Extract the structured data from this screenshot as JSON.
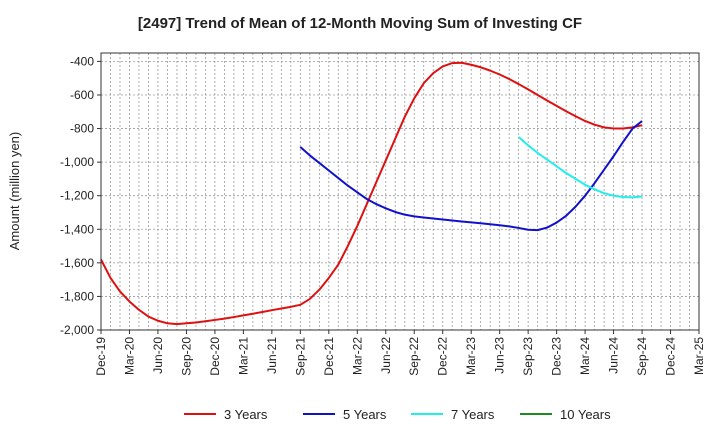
{
  "chart_data": {
    "type": "line",
    "title": "[2497]  Trend of Mean of 12-Month Moving Sum of Investing CF",
    "xlabel": "",
    "ylabel": "Amount (million yen)",
    "ylim": [
      -2000,
      -350
    ],
    "yticks": [
      -400,
      -600,
      -800,
      -1000,
      -1200,
      -1400,
      -1600,
      -1800,
      -2000
    ],
    "ytick_labels": [
      "-400",
      "-600",
      "-800",
      "-1,000",
      "-1,200",
      "-1,400",
      "-1,600",
      "-1,800",
      "-2,000"
    ],
    "xticks": [
      "Dec-19",
      "Mar-20",
      "Jun-20",
      "Sep-20",
      "Dec-20",
      "Mar-21",
      "Jun-21",
      "Sep-21",
      "Dec-21",
      "Mar-22",
      "Jun-22",
      "Sep-22",
      "Dec-22",
      "Mar-23",
      "Jun-23",
      "Sep-23",
      "Dec-23",
      "Mar-24",
      "Jun-24",
      "Sep-24",
      "Dec-24",
      "Mar-25"
    ],
    "grid": true,
    "legend_position": "bottom",
    "series": [
      {
        "name": "3 Years",
        "color": "#dd1111",
        "points": [
          [
            "Dec-19",
            -1580
          ],
          [
            "Jan-20",
            -1690
          ],
          [
            "Feb-20",
            -1770
          ],
          [
            "Mar-20",
            -1830
          ],
          [
            "Apr-20",
            -1880
          ],
          [
            "May-20",
            -1920
          ],
          [
            "Jun-20",
            -1945
          ],
          [
            "Jul-20",
            -1960
          ],
          [
            "Aug-20",
            -1965
          ],
          [
            "Sep-20",
            -1960
          ],
          [
            "Oct-20",
            -1955
          ],
          [
            "Nov-20",
            -1948
          ],
          [
            "Dec-20",
            -1940
          ],
          [
            "Jan-21",
            -1932
          ],
          [
            "Feb-21",
            -1923
          ],
          [
            "Mar-21",
            -1913
          ],
          [
            "Apr-21",
            -1903
          ],
          [
            "May-21",
            -1893
          ],
          [
            "Jun-21",
            -1882
          ],
          [
            "Jul-21",
            -1872
          ],
          [
            "Aug-21",
            -1862
          ],
          [
            "Sep-21",
            -1850
          ],
          [
            "Oct-21",
            -1815
          ],
          [
            "Nov-21",
            -1760
          ],
          [
            "Dec-21",
            -1690
          ],
          [
            "Jan-22",
            -1610
          ],
          [
            "Feb-22",
            -1500
          ],
          [
            "Mar-22",
            -1380
          ],
          [
            "Apr-22",
            -1250
          ],
          [
            "May-22",
            -1120
          ],
          [
            "Jun-22",
            -990
          ],
          [
            "Jul-22",
            -860
          ],
          [
            "Aug-22",
            -730
          ],
          [
            "Sep-22",
            -620
          ],
          [
            "Oct-22",
            -530
          ],
          [
            "Nov-22",
            -470
          ],
          [
            "Dec-22",
            -430
          ],
          [
            "Jan-23",
            -410
          ],
          [
            "Feb-23",
            -408
          ],
          [
            "Mar-23",
            -420
          ],
          [
            "Apr-23",
            -435
          ],
          [
            "May-23",
            -455
          ],
          [
            "Jun-23",
            -478
          ],
          [
            "Jul-23",
            -505
          ],
          [
            "Aug-23",
            -535
          ],
          [
            "Sep-23",
            -567
          ],
          [
            "Oct-23",
            -600
          ],
          [
            "Nov-23",
            -633
          ],
          [
            "Dec-23",
            -665
          ],
          [
            "Jan-24",
            -697
          ],
          [
            "Feb-24",
            -727
          ],
          [
            "Mar-24",
            -755
          ],
          [
            "Apr-24",
            -777
          ],
          [
            "May-24",
            -793
          ],
          [
            "Jun-24",
            -800
          ],
          [
            "Jul-24",
            -800
          ],
          [
            "Aug-24",
            -793
          ],
          [
            "Sep-24",
            -780
          ]
        ]
      },
      {
        "name": "5 Years",
        "color": "#1111cc",
        "points": [
          [
            "Sep-21",
            -910
          ],
          [
            "Oct-21",
            -960
          ],
          [
            "Nov-21",
            -1005
          ],
          [
            "Dec-21",
            -1050
          ],
          [
            "Jan-22",
            -1095
          ],
          [
            "Feb-22",
            -1140
          ],
          [
            "Mar-22",
            -1180
          ],
          [
            "Apr-22",
            -1220
          ],
          [
            "May-22",
            -1250
          ],
          [
            "Jun-22",
            -1275
          ],
          [
            "Jul-22",
            -1297
          ],
          [
            "Aug-22",
            -1313
          ],
          [
            "Sep-22",
            -1323
          ],
          [
            "Oct-22",
            -1330
          ],
          [
            "Nov-22",
            -1336
          ],
          [
            "Dec-22",
            -1342
          ],
          [
            "Jan-23",
            -1348
          ],
          [
            "Feb-23",
            -1354
          ],
          [
            "Mar-23",
            -1359
          ],
          [
            "Apr-23",
            -1364
          ],
          [
            "May-23",
            -1370
          ],
          [
            "Jun-23",
            -1376
          ],
          [
            "Jul-23",
            -1383
          ],
          [
            "Aug-23",
            -1392
          ],
          [
            "Sep-23",
            -1403
          ],
          [
            "Oct-23",
            -1405
          ],
          [
            "Nov-23",
            -1390
          ],
          [
            "Dec-23",
            -1360
          ],
          [
            "Jan-24",
            -1320
          ],
          [
            "Feb-24",
            -1265
          ],
          [
            "Mar-24",
            -1200
          ],
          [
            "Apr-24",
            -1125
          ],
          [
            "May-24",
            -1045
          ],
          [
            "Jun-24",
            -965
          ],
          [
            "Jul-24",
            -880
          ],
          [
            "Aug-24",
            -800
          ],
          [
            "Sep-24",
            -755
          ]
        ]
      },
      {
        "name": "7 Years",
        "color": "#22eeee",
        "points": [
          [
            "Aug-23",
            -850
          ],
          [
            "Sep-23",
            -900
          ],
          [
            "Oct-23",
            -945
          ],
          [
            "Nov-23",
            -985
          ],
          [
            "Dec-23",
            -1025
          ],
          [
            "Jan-24",
            -1065
          ],
          [
            "Feb-24",
            -1100
          ],
          [
            "Mar-24",
            -1135
          ],
          [
            "Apr-24",
            -1162
          ],
          [
            "May-24",
            -1185
          ],
          [
            "Jun-24",
            -1200
          ],
          [
            "Jul-24",
            -1208
          ],
          [
            "Aug-24",
            -1210
          ],
          [
            "Sep-24",
            -1205
          ]
        ]
      },
      {
        "name": "10 Years",
        "color": "#228822",
        "points": []
      }
    ]
  }
}
